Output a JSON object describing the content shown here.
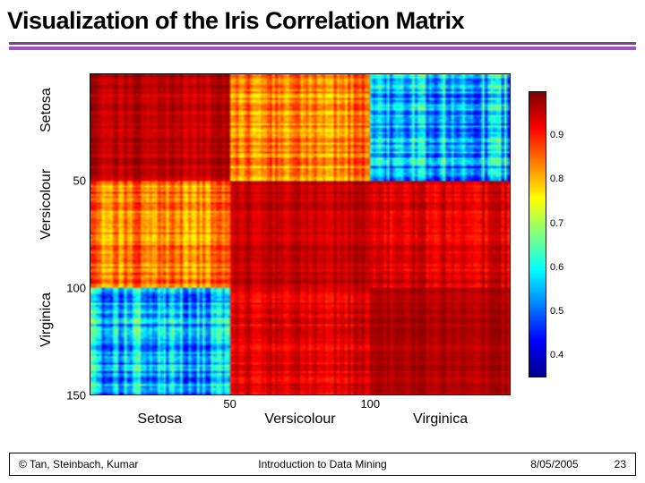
{
  "slide": {
    "title": "Visualization of the Iris Correlation Matrix",
    "rule_colors": [
      "#8040a0",
      "#a050c0"
    ]
  },
  "heatmap": {
    "type": "heatmap",
    "n_rows": 150,
    "n_cols": 150,
    "blocks_per_axis": 3,
    "block_size": 50,
    "y_labels": [
      "Setosa",
      "Versicolour",
      "Virginica"
    ],
    "x_labels": [
      "Setosa",
      "Versicolour",
      "Virginica"
    ],
    "y_ticks": [
      50,
      100,
      150
    ],
    "x_ticks": [
      50,
      100
    ],
    "y_label_centers": [
      25,
      75,
      125
    ],
    "x_label_centers": [
      25,
      75,
      125
    ],
    "block_means": [
      [
        0.96,
        0.84,
        0.55
      ],
      [
        0.84,
        0.96,
        0.94
      ],
      [
        0.55,
        0.94,
        0.97
      ]
    ],
    "block_noise": [
      [
        0.03,
        0.07,
        0.11
      ],
      [
        0.07,
        0.03,
        0.04
      ],
      [
        0.11,
        0.04,
        0.02
      ]
    ],
    "value_min": 0.35,
    "value_max": 1.0,
    "axis_fontsize": 16,
    "tick_fontsize": 13,
    "frame_border_color": "#000000",
    "background_color": "#ffffff"
  },
  "colormap": {
    "name": "jet",
    "stops": [
      {
        "t": 0.0,
        "color": "#00008f"
      },
      {
        "t": 0.125,
        "color": "#0000ff"
      },
      {
        "t": 0.375,
        "color": "#00ffff"
      },
      {
        "t": 0.625,
        "color": "#ffff00"
      },
      {
        "t": 0.875,
        "color": "#ff0000"
      },
      {
        "t": 1.0,
        "color": "#800000"
      }
    ]
  },
  "colorbar": {
    "ticks": [
      0.4,
      0.5,
      0.6,
      0.7,
      0.8,
      0.9
    ],
    "tick_fontsize": 11,
    "display_min": 0.35,
    "display_max": 1.0
  },
  "footer": {
    "left": "© Tan, Steinbach, Kumar",
    "center": "Introduction to Data Mining",
    "right_date": "8/05/2005",
    "right_page": "23"
  }
}
